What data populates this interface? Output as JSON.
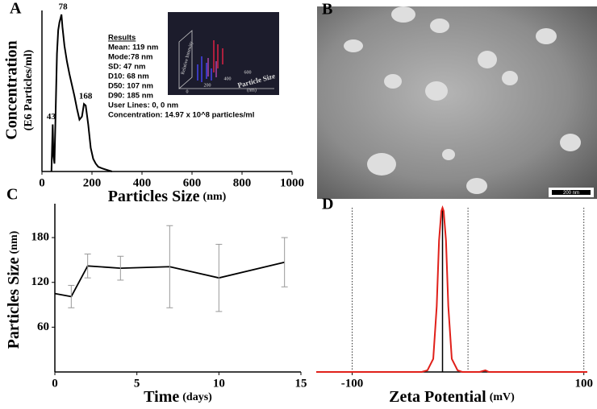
{
  "chart_data": [
    {
      "type": "line",
      "panel": "A",
      "xlabel": "Particles Size",
      "xlabel_unit": "(nm)",
      "ylabel": "Concentration",
      "ylabel_unit": "(E6 Particles/ml)",
      "x": [
        38,
        43,
        46,
        50,
        55,
        60,
        65,
        70,
        75,
        78,
        82,
        90,
        100,
        110,
        120,
        130,
        140,
        150,
        160,
        168,
        175,
        185,
        195,
        205,
        215,
        225,
        240,
        260,
        280
      ],
      "series": [
        {
          "name": "Concentration",
          "color": "#000000",
          "values": [
            0,
            30,
            10,
            5,
            40,
            75,
            90,
            95,
            98,
            100,
            92,
            80,
            70,
            62,
            55,
            48,
            40,
            33,
            35,
            43,
            42,
            30,
            15,
            8,
            5,
            3,
            2,
            1,
            0
          ]
        }
      ],
      "xlim": [
        0,
        1000
      ],
      "xticks": [
        0,
        200,
        400,
        600,
        800,
        1000
      ],
      "ylim": [
        0,
        100
      ],
      "annotations": [
        {
          "text": "43",
          "x": 43,
          "y": 30
        },
        {
          "text": "78",
          "x": 78,
          "y": 100
        },
        {
          "text": "168",
          "x": 168,
          "y": 43
        }
      ],
      "results_title": "Results",
      "results": [
        "Mean: 119 nm",
        "Mode:78 nm",
        "SD: 47 nm",
        "D10: 68 nm",
        "D50: 107 nm",
        "D90: 185 nm",
        "User Lines: 0, 0 nm",
        "Concentration: 14.97 x 10^8 particles/ml"
      ],
      "inset": {
        "ylabel": "Relative Intensity",
        "xlabel": "Particle Size",
        "xlabel_unit": "(nm)",
        "ticks": [
          0,
          200,
          400,
          600
        ]
      }
    },
    {
      "type": "errorline",
      "panel": "C",
      "xlabel": "Time",
      "xlabel_unit": "(days)",
      "ylabel": "Particles Size",
      "ylabel_unit": "(nm)",
      "x": [
        0,
        1,
        2,
        4,
        7,
        10,
        14
      ],
      "series": [
        {
          "name": "Particles Size",
          "color": "#000000",
          "values": [
            105,
            101,
            142,
            139,
            141,
            126,
            147
          ],
          "errors": [
            0,
            15,
            16,
            16,
            55,
            45,
            33
          ]
        }
      ],
      "xlim": [
        0,
        15
      ],
      "xticks": [
        0,
        5,
        10,
        15
      ],
      "ylim": [
        0,
        220
      ],
      "yticks": [
        60,
        120,
        180
      ]
    },
    {
      "type": "line",
      "panel": "D",
      "xlabel": "Zeta Potential",
      "xlabel_unit": "(mV)",
      "x": [
        -131,
        -40,
        -35,
        -30,
        -27,
        -25,
        -23,
        -22,
        -21,
        -19,
        -17,
        -14,
        -9,
        -5,
        0,
        10,
        15,
        18,
        103
      ],
      "series": [
        {
          "name": "Zeta Potential",
          "color": "#e0201a",
          "values": [
            0,
            0,
            1,
            8,
            40,
            80,
            98,
            100,
            98,
            80,
            40,
            8,
            1,
            0,
            0,
            0,
            1,
            0,
            0
          ]
        }
      ],
      "xlim": [
        -131,
        103
      ],
      "xticks": [
        -100,
        100
      ],
      "xgrid": [
        -100,
        0,
        100
      ],
      "peak_line": -22,
      "ylim": [
        0,
        100
      ]
    }
  ],
  "image_panel": {
    "panel": "B",
    "scale_bar": "200 nm"
  }
}
